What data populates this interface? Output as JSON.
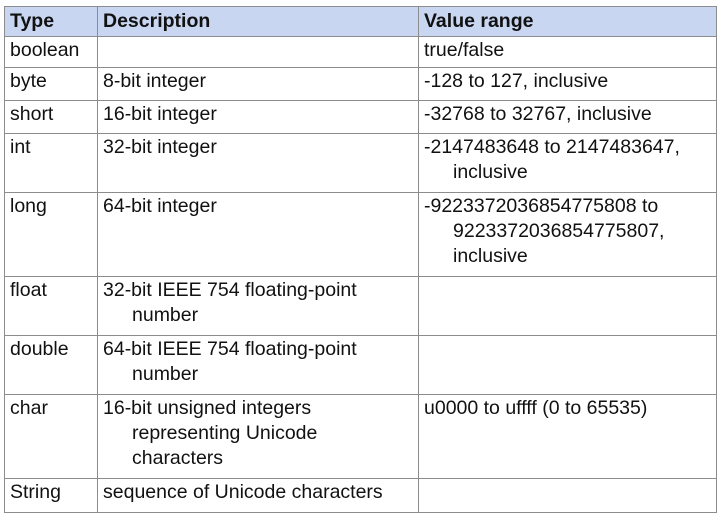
{
  "headers": {
    "type": "Type",
    "description": "Description",
    "value_range": "Value range"
  },
  "rows": [
    {
      "type": "boolean",
      "description": "",
      "value_range": "true/false"
    },
    {
      "type": "byte",
      "description": "8-bit integer",
      "value_range": "-128 to 127, inclusive"
    },
    {
      "type": "short",
      "description": "16-bit integer",
      "value_range": "-32768 to 32767, inclusive"
    },
    {
      "type": "int",
      "description": "32-bit integer",
      "value_range": "-2147483648 to 2147483647, inclusive"
    },
    {
      "type": "long",
      "description": "64-bit integer",
      "value_range": "-9223372036854775808 to 9223372036854775807, inclusive"
    },
    {
      "type": "float",
      "description": "32-bit IEEE 754 floating-point number",
      "value_range": ""
    },
    {
      "type": "double",
      "description": "64-bit IEEE 754 floating-point number",
      "value_range": ""
    },
    {
      "type": "char",
      "description": "16-bit unsigned integers representing Unicode characters",
      "value_range": "u0000 to uffff (0 to 65535)"
    },
    {
      "type": "String",
      "description": "sequence of Unicode characters",
      "value_range": ""
    }
  ]
}
